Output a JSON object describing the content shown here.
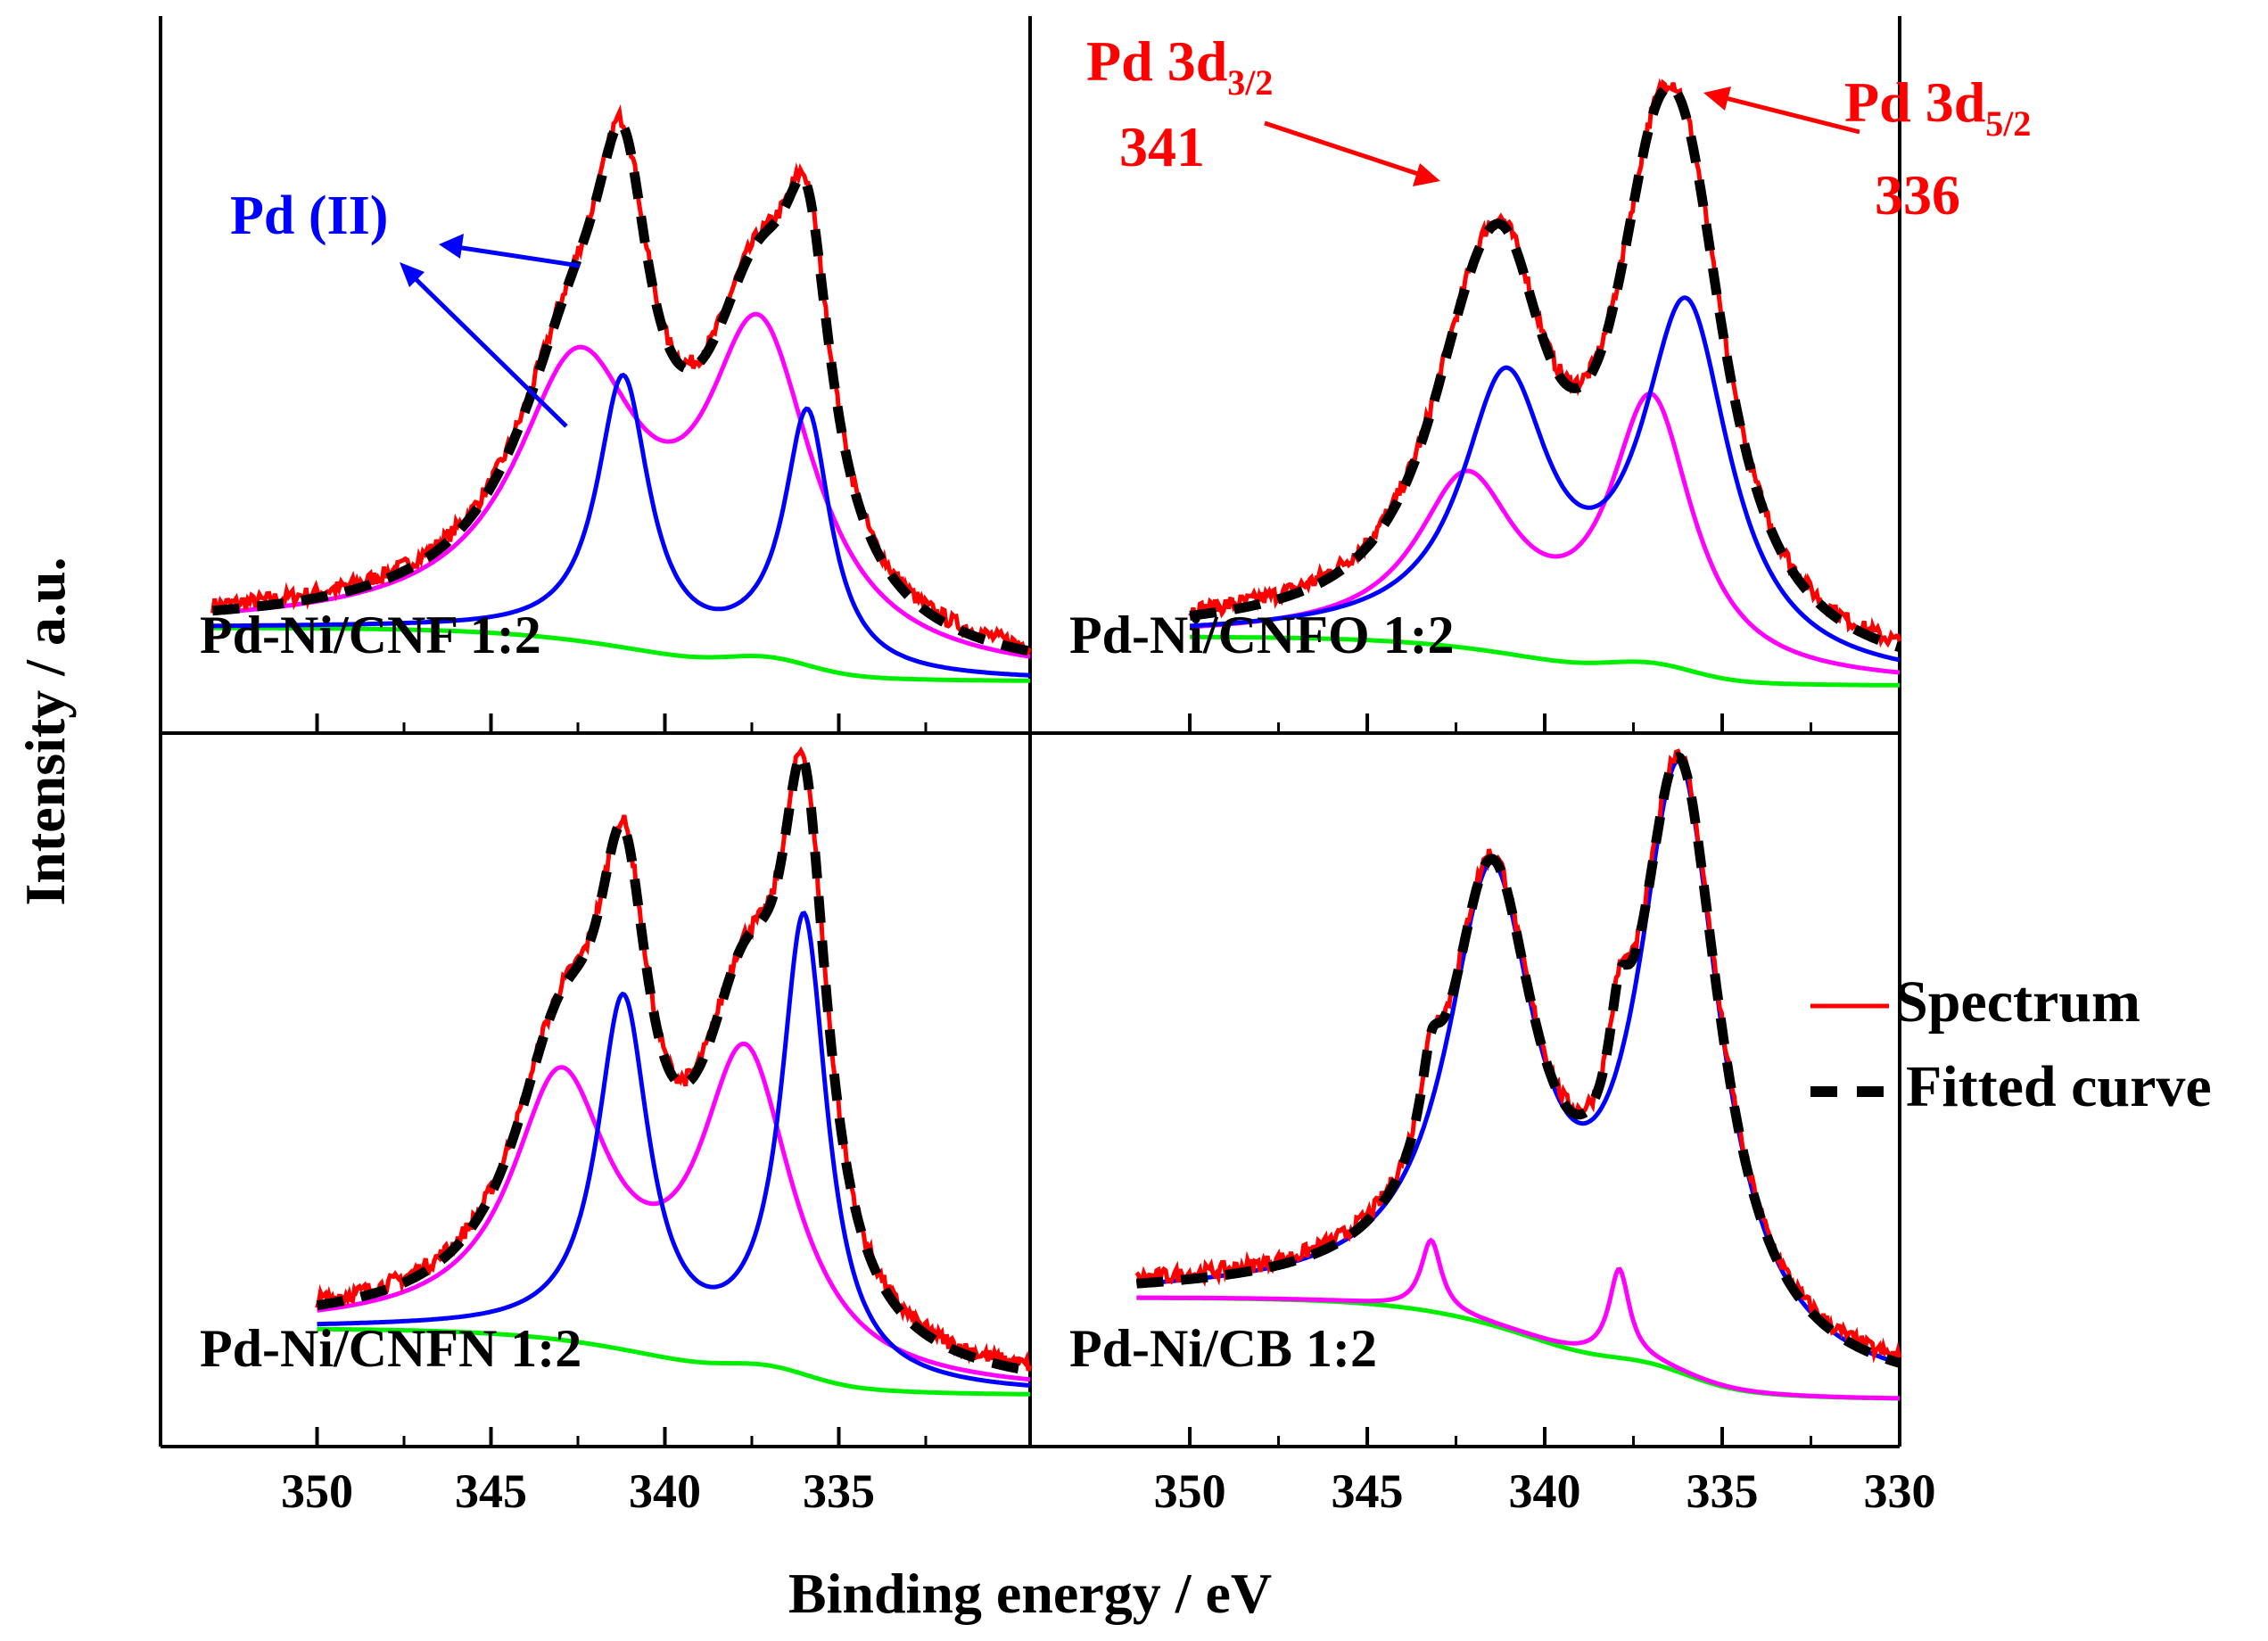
{
  "figure": {
    "xlabel": "Binding energy / eV",
    "ylabel": "Intensity / a.u.",
    "legend": [
      {
        "label": "Spectrum",
        "color": "#ff0000",
        "style": "solid"
      },
      {
        "label": "Fitted curve",
        "color": "#000000",
        "style": "dashed"
      }
    ],
    "colors": {
      "spectrum": "#ff0000",
      "fitted": "#000000",
      "pd0": "#0000ff",
      "pd2": "#ff00ff",
      "background": "#00ee00",
      "pd_ii_label": "#0000ff",
      "pd_label": "#ff0000"
    },
    "annotations": {
      "pd_ii": "Pd (II)",
      "pd_3d32_prefix": "Pd 3d",
      "pd_3d32_sub": "3/2",
      "pd_3d32_value": "341",
      "pd_3d52_prefix": "Pd 3d",
      "pd_3d52_sub": "5/2",
      "pd_3d52_value": "336"
    },
    "x_ticks_left": [
      "350",
      "345",
      "340",
      "335"
    ],
    "x_ticks_right": [
      "350",
      "345",
      "340",
      "335",
      "330"
    ]
  },
  "chart_data": [
    {
      "type": "line",
      "panel": "top-left",
      "label": "Pd-Ni/CNF 1:2",
      "xlim": [
        354.5,
        329.5
      ],
      "x_range": [
        353,
        329.5
      ],
      "baseline": {
        "y0": 0.14,
        "y1": 0.02,
        "center": 340,
        "width": 2.2,
        "extra_center": 337,
        "extra_amp": 0.03
      },
      "pd0": [
        {
          "center": 341.2,
          "amp": 0.6,
          "width": 0.9
        },
        {
          "center": 335.9,
          "amp": 0.56,
          "width": 0.8
        }
      ],
      "pd2": [
        {
          "center": 342.5,
          "amp": 0.58,
          "width": 2.2
        },
        {
          "center": 337.3,
          "amp": 0.68,
          "width": 1.9
        }
      ],
      "peak_labels": []
    },
    {
      "type": "line",
      "panel": "top-right",
      "label": "Pd-Ni/CNFO 1:2",
      "xlim": [
        354.5,
        330
      ],
      "x_range": [
        350,
        330
      ],
      "baseline": {
        "y0": 0.12,
        "y1": 0.01,
        "center": 339.8,
        "width": 2.0,
        "extra_center": 337,
        "extra_amp": 0.03
      },
      "pd0": [
        {
          "center": 341.1,
          "amp": 0.58,
          "width": 1.5
        },
        {
          "center": 336.0,
          "amp": 0.79,
          "width": 1.5
        }
      ],
      "pd2": [
        {
          "center": 342.2,
          "amp": 0.36,
          "width": 1.7
        },
        {
          "center": 337.0,
          "amp": 0.57,
          "width": 1.4
        }
      ],
      "peak_labels": [
        {
          "name": "Pd 3d3/2",
          "value": 341
        },
        {
          "name": "Pd 3d5/2",
          "value": 336
        }
      ]
    },
    {
      "type": "line",
      "panel": "bottom-left",
      "label": "Pd-Ni/CNFN 1:2",
      "xlim": [
        354.5,
        329.5
      ],
      "x_range": [
        350,
        329.5
      ],
      "baseline": {
        "y0": 0.17,
        "y1": 0.02,
        "center": 339.5,
        "width": 2.2,
        "extra_center": 337,
        "extra_amp": 0.03
      },
      "pd0": [
        {
          "center": 341.2,
          "amp": 0.78,
          "width": 0.9
        },
        {
          "center": 336.0,
          "amp": 1.02,
          "width": 0.8
        }
      ],
      "pd2": [
        {
          "center": 343.0,
          "amp": 0.56,
          "width": 1.7
        },
        {
          "center": 337.7,
          "amp": 0.67,
          "width": 1.6
        }
      ],
      "peak_labels": []
    },
    {
      "type": "line",
      "panel": "bottom-right",
      "label": "Pd-Ni/CB 1:2",
      "xlim": [
        354.5,
        330
      ],
      "x_range": [
        351.5,
        330
      ],
      "baseline": {
        "y0": 0.24,
        "y1": 0.01,
        "center": 339.5,
        "width": 2.0,
        "extra_center": 337,
        "extra_amp": 0.03
      },
      "pd0": [
        {
          "center": 341.5,
          "amp": 0.96,
          "width": 1.5
        },
        {
          "center": 336.2,
          "amp": 1.31,
          "width": 1.4
        }
      ],
      "pd2": [
        {
          "center": 343.2,
          "amp": 0.16,
          "width": 0.35
        },
        {
          "center": 337.9,
          "amp": 0.2,
          "width": 0.35
        }
      ],
      "peak_labels": []
    }
  ]
}
